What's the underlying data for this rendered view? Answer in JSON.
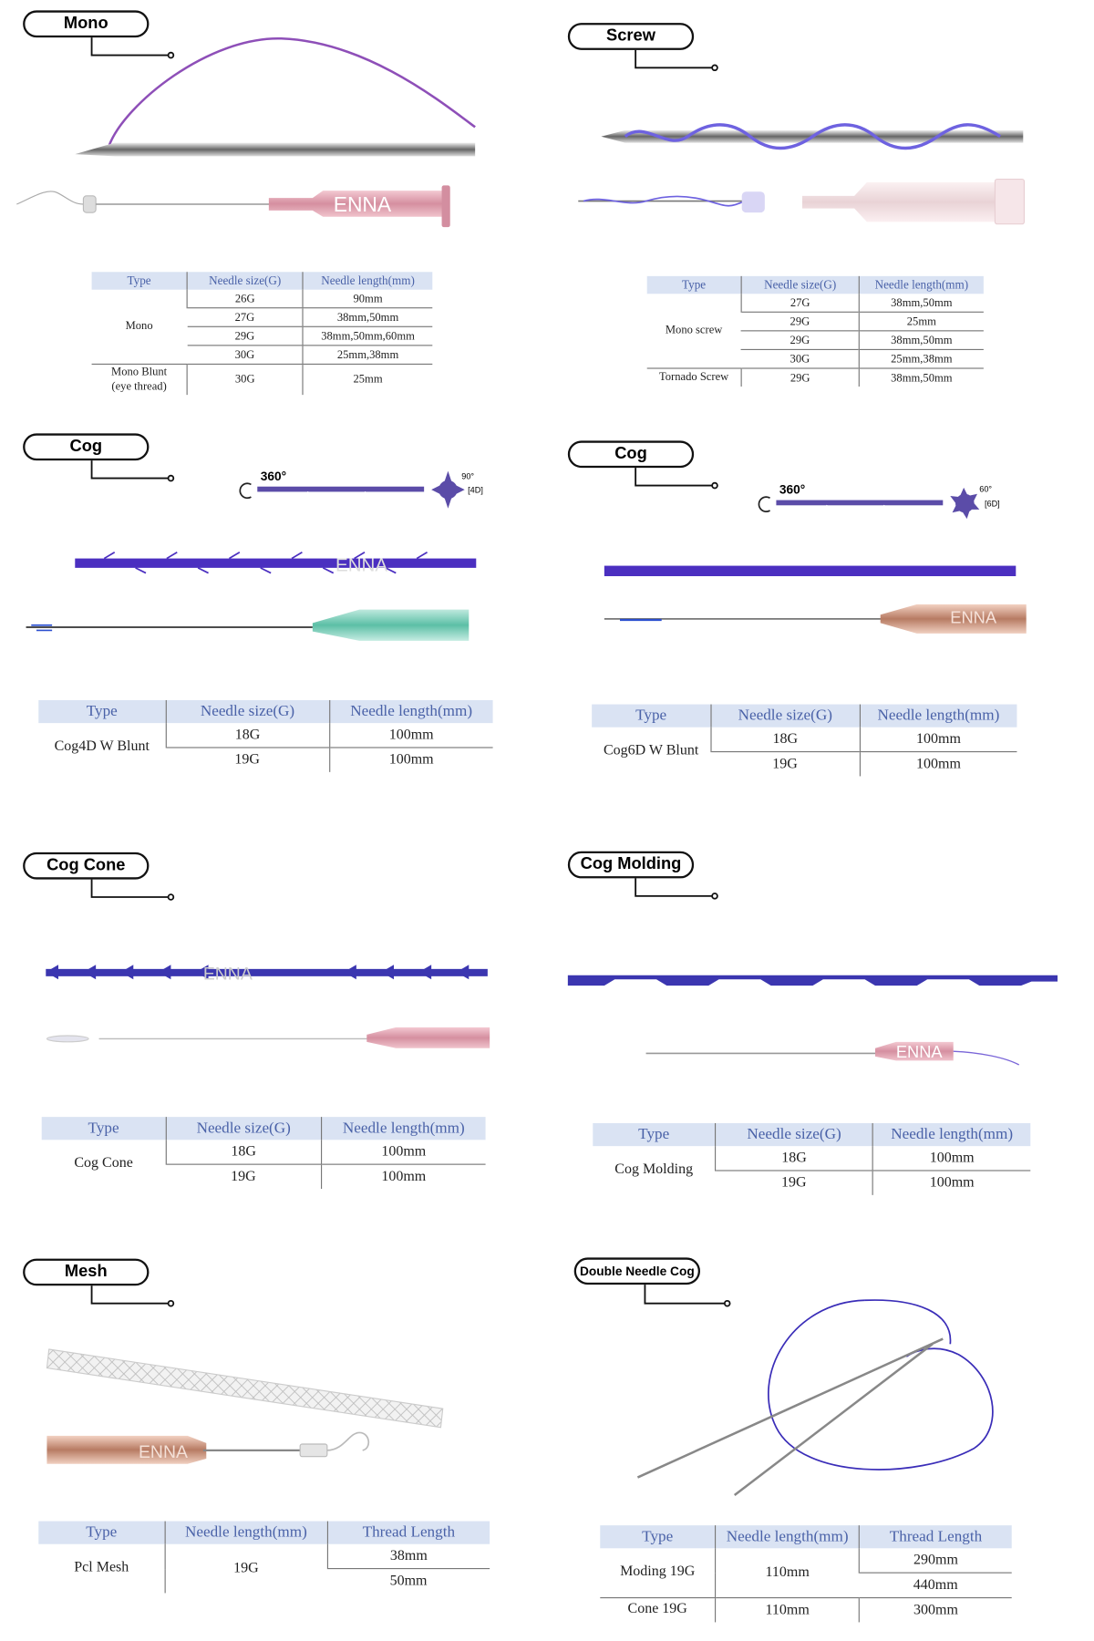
{
  "watermark": "ENNA",
  "colors": {
    "header_bg": "#dae3f3",
    "header_text": "#4a62a8",
    "thread_purple": "#4b2fc0",
    "mono_purple": "#8e4fb8"
  },
  "sections": [
    {
      "id": "mono",
      "label": "Mono",
      "headers": [
        "Type",
        "Needle size(G)",
        "Needle length(mm)"
      ],
      "groups": [
        {
          "cells": [
            "Mono",
            [
              "26G",
              "27G",
              "29G",
              "30G"
            ],
            [
              "90mm",
              "38mm,50mm",
              "38mm,50mm,60mm",
              "25mm,38mm"
            ]
          ]
        },
        {
          "cells": [
            "Mono Blunt\n(eye thread)",
            "30G",
            "25mm"
          ]
        }
      ]
    },
    {
      "id": "screw",
      "label": "Screw",
      "headers": [
        "Type",
        "Needle size(G)",
        "Needle length(mm)"
      ],
      "groups": [
        {
          "cells": [
            "Mono screw",
            [
              "27G",
              "29G",
              "29G",
              "30G"
            ],
            [
              "38mm,50mm",
              "25mm",
              "38mm,50mm",
              "25mm,38mm"
            ]
          ]
        },
        {
          "cells": [
            "Tornado Screw",
            "29G",
            "38mm,50mm"
          ]
        }
      ]
    },
    {
      "id": "cog4d",
      "label": "Cog",
      "diagram": {
        "rotation": "360°",
        "angle": "90°",
        "dimension": "[4D]"
      },
      "headers": [
        "Type",
        "Needle size(G)",
        "Needle length(mm)"
      ],
      "groups": [
        {
          "cells": [
            "Cog4D W Blunt",
            [
              "18G",
              "19G"
            ],
            [
              "100mm",
              "100mm"
            ]
          ]
        }
      ]
    },
    {
      "id": "cog6d",
      "label": "Cog",
      "diagram": {
        "rotation": "360°",
        "angle": "60°",
        "dimension": "[6D]"
      },
      "headers": [
        "Type",
        "Needle size(G)",
        "Needle length(mm)"
      ],
      "groups": [
        {
          "cells": [
            "Cog6D W Blunt",
            [
              "18G",
              "19G"
            ],
            [
              "100mm",
              "100mm"
            ]
          ]
        }
      ]
    },
    {
      "id": "cogcone",
      "label": "Cog Cone",
      "headers": [
        "Type",
        "Needle size(G)",
        "Needle length(mm)"
      ],
      "groups": [
        {
          "cells": [
            "Cog Cone",
            [
              "18G",
              "19G"
            ],
            [
              "100mm",
              "100mm"
            ]
          ]
        }
      ]
    },
    {
      "id": "cogmolding",
      "label": "Cog Molding",
      "headers": [
        "Type",
        "Needle size(G)",
        "Needle length(mm)"
      ],
      "groups": [
        {
          "cells": [
            "Cog Molding",
            [
              "18G",
              "19G"
            ],
            [
              "100mm",
              "100mm"
            ]
          ]
        }
      ]
    },
    {
      "id": "mesh",
      "label": "Mesh",
      "headers": [
        "Type",
        "Needle length(mm)",
        "Thread Length"
      ],
      "groups": [
        {
          "cells": [
            "Pcl Mesh",
            "19G",
            [
              "38mm",
              "50mm"
            ]
          ]
        }
      ]
    },
    {
      "id": "double",
      "label": "Double Needle Cog",
      "headers": [
        "Type",
        "Needle length(mm)",
        "Thread Length"
      ],
      "groups": [
        {
          "cells": [
            "Moding 19G",
            "110mm",
            [
              "290mm",
              "440mm"
            ]
          ]
        },
        {
          "cells": [
            "Cone 19G",
            "110mm",
            "300mm"
          ]
        }
      ]
    }
  ]
}
